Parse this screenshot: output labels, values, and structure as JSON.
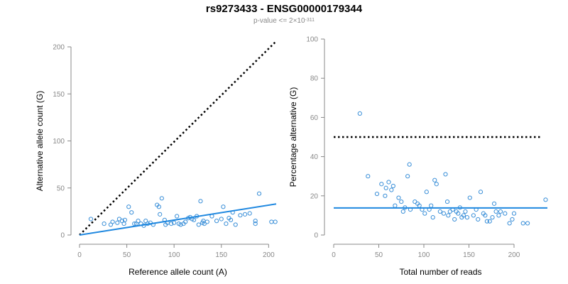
{
  "title": "rs9273433 - ENSG00000179344",
  "subtitle": {
    "prefix": "p-value <= 2",
    "times": "×10",
    "exponent": "-311"
  },
  "colors": {
    "points": "#3a8fd8",
    "fit": "#1f88e0",
    "dotted": "#000000",
    "axis": "#888888"
  },
  "chart_data": [
    {
      "type": "scatter",
      "xlabel": "Reference allele count (A)",
      "ylabel": "Alternative allele count (G)",
      "xlim": [
        0,
        208
      ],
      "ylim": [
        0,
        200
      ],
      "xticks": [
        0,
        50,
        100,
        150,
        200
      ],
      "yticks": [
        0,
        50,
        100,
        150,
        200
      ],
      "dotted_line": {
        "x": [
          0,
          208
        ],
        "y": [
          0,
          206
        ]
      },
      "fit_line": {
        "x": [
          0,
          208
        ],
        "y": [
          0,
          33
        ]
      },
      "points": [
        [
          12,
          17
        ],
        [
          26,
          12
        ],
        [
          33,
          11
        ],
        [
          35,
          14
        ],
        [
          40,
          13
        ],
        [
          42,
          17
        ],
        [
          45,
          15
        ],
        [
          47,
          12
        ],
        [
          48,
          16
        ],
        [
          52,
          30
        ],
        [
          55,
          24
        ],
        [
          58,
          12
        ],
        [
          60,
          12
        ],
        [
          62,
          15
        ],
        [
          65,
          12
        ],
        [
          68,
          10
        ],
        [
          70,
          15
        ],
        [
          72,
          12
        ],
        [
          75,
          13
        ],
        [
          78,
          11
        ],
        [
          82,
          32
        ],
        [
          84,
          30
        ],
        [
          85,
          22
        ],
        [
          87,
          39
        ],
        [
          90,
          16
        ],
        [
          91,
          11
        ],
        [
          93,
          13
        ],
        [
          97,
          12
        ],
        [
          100,
          13
        ],
        [
          103,
          20
        ],
        [
          105,
          12
        ],
        [
          107,
          11
        ],
        [
          110,
          12
        ],
        [
          112,
          14
        ],
        [
          115,
          18
        ],
        [
          117,
          19
        ],
        [
          119,
          17
        ],
        [
          121,
          16
        ],
        [
          124,
          20
        ],
        [
          126,
          11
        ],
        [
          128,
          36
        ],
        [
          130,
          13
        ],
        [
          131,
          15
        ],
        [
          132,
          12
        ],
        [
          135,
          14
        ],
        [
          140,
          20
        ],
        [
          145,
          15
        ],
        [
          150,
          17
        ],
        [
          152,
          30
        ],
        [
          155,
          12
        ],
        [
          158,
          18
        ],
        [
          160,
          16
        ],
        [
          162,
          24
        ],
        [
          165,
          11
        ],
        [
          170,
          21
        ],
        [
          175,
          22
        ],
        [
          180,
          23
        ],
        [
          186,
          15
        ],
        [
          186,
          12
        ],
        [
          190,
          44
        ],
        [
          203,
          14
        ],
        [
          207,
          14
        ]
      ]
    },
    {
      "type": "scatter",
      "xlabel": "Total number of reads",
      "ylabel": "Percentage alternative (G)",
      "xlim": [
        0,
        237
      ],
      "ylim": [
        0,
        100
      ],
      "xticks": [
        0,
        50,
        100,
        150,
        200
      ],
      "yticks": [
        0,
        20,
        40,
        60,
        80,
        100
      ],
      "dotted_line": {
        "x": [
          0,
          230
        ],
        "y": [
          50,
          50
        ]
      },
      "fit_line": {
        "x": [
          0,
          237
        ],
        "y": [
          13.8,
          13.8
        ]
      },
      "points": [
        [
          29,
          62
        ],
        [
          38,
          30
        ],
        [
          48,
          21
        ],
        [
          53,
          26
        ],
        [
          57,
          20
        ],
        [
          58,
          24
        ],
        [
          61,
          27
        ],
        [
          64,
          23
        ],
        [
          66,
          25
        ],
        [
          68,
          15
        ],
        [
          72,
          19
        ],
        [
          75,
          17
        ],
        [
          77,
          12
        ],
        [
          79,
          14
        ],
        [
          82,
          30
        ],
        [
          84,
          36
        ],
        [
          85,
          13
        ],
        [
          90,
          17
        ],
        [
          93,
          16
        ],
        [
          95,
          15
        ],
        [
          98,
          13
        ],
        [
          101,
          11
        ],
        [
          103,
          22
        ],
        [
          106,
          13
        ],
        [
          108,
          15
        ],
        [
          110,
          9
        ],
        [
          112,
          28
        ],
        [
          114,
          26
        ],
        [
          118,
          12
        ],
        [
          122,
          11
        ],
        [
          124,
          31
        ],
        [
          126,
          17
        ],
        [
          127,
          10
        ],
        [
          129,
          12
        ],
        [
          132,
          13
        ],
        [
          134,
          8
        ],
        [
          136,
          12
        ],
        [
          138,
          11
        ],
        [
          140,
          14
        ],
        [
          142,
          9
        ],
        [
          144,
          10
        ],
        [
          146,
          12
        ],
        [
          148,
          9
        ],
        [
          151,
          19
        ],
        [
          155,
          10
        ],
        [
          158,
          13
        ],
        [
          160,
          8
        ],
        [
          163,
          22
        ],
        [
          166,
          11
        ],
        [
          168,
          10
        ],
        [
          170,
          7
        ],
        [
          173,
          7
        ],
        [
          176,
          9
        ],
        [
          178,
          16
        ],
        [
          180,
          12
        ],
        [
          183,
          10
        ],
        [
          185,
          12
        ],
        [
          190,
          11
        ],
        [
          195,
          6
        ],
        [
          198,
          8
        ],
        [
          200,
          11
        ],
        [
          210,
          6
        ],
        [
          215,
          6
        ],
        [
          235,
          18
        ]
      ]
    }
  ]
}
